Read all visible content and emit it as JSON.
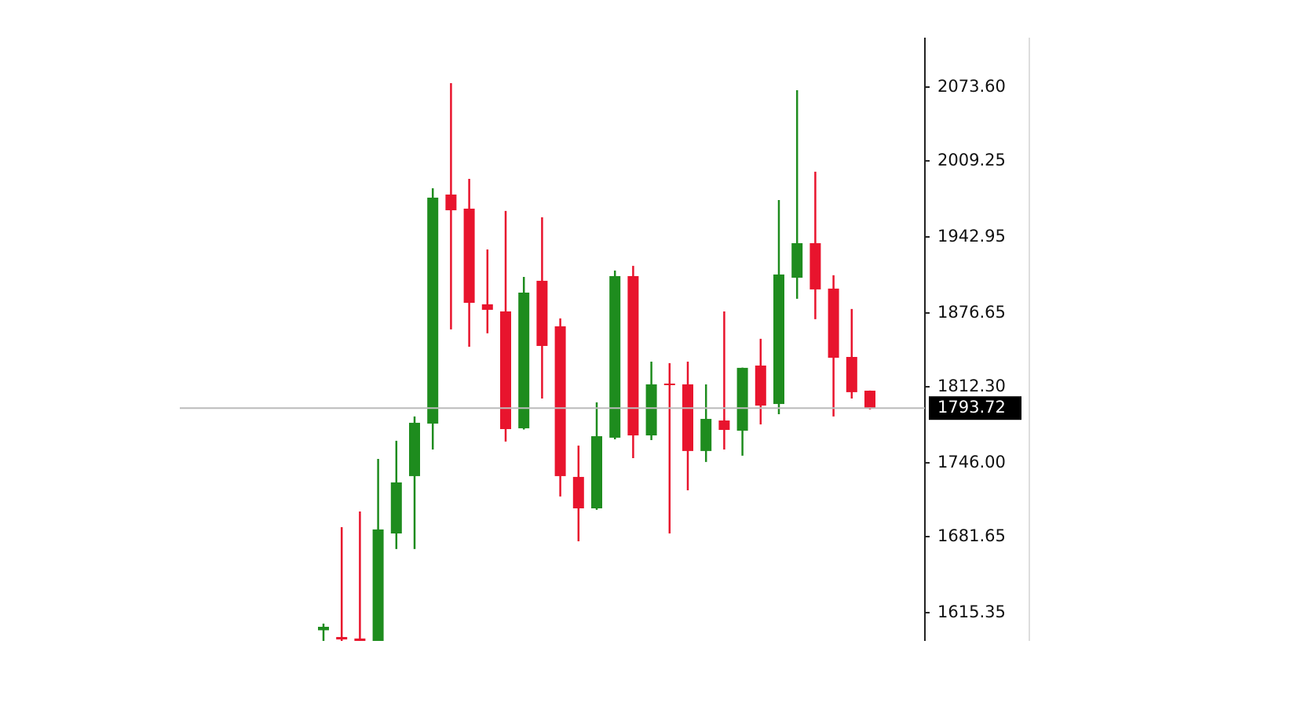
{
  "chart_data": {
    "type": "candlestick",
    "open": [
      1600,
      1594.1,
      1592.8,
      1588,
      1684.4,
      1734.4,
      1780.2,
      1979.9,
      1967.6,
      1884.2,
      1878.0,
      1776.1,
      1904.7,
      1865.0,
      1733.7,
      1706.3,
      1767.9,
      1908.8,
      1769.9,
      1815.1,
      1814.4,
      1756.3,
      1782.9,
      1774.0,
      1830.8,
      1797.3,
      1907.4,
      1937.5,
      1897.9,
      1838.3,
      1808.9
    ],
    "high": [
      1605.8,
      1689.9,
      1703.6,
      1749.4,
      1765.2,
      1786.4,
      1985.4,
      2077.0,
      1993.6,
      1932.0,
      1965.6,
      1908.1,
      1960.1,
      1871.9,
      1761.0,
      1798.7,
      1913.6,
      1917.7,
      1834.2,
      1832.9,
      1834.2,
      1814.4,
      1878.0,
      1829.0,
      1854.1,
      1975.1,
      2070.9,
      1999.8,
      1909.5,
      1880.1,
      1809.0
    ],
    "low": [
      1585,
      1588,
      1588,
      1585,
      1670.8,
      1670.8,
      1757.6,
      1862.3,
      1847.2,
      1858.9,
      1764.5,
      1775.0,
      1802.1,
      1716.6,
      1677.6,
      1705.0,
      1766.5,
      1750.1,
      1765.8,
      1684.4,
      1722.0,
      1746.7,
      1757.6,
      1752.2,
      1779.5,
      1788.4,
      1889.0,
      1871.2,
      1786.4,
      1802.1,
      1792.5
    ],
    "close": [
      1603,
      1592,
      1590.5,
      1687.9,
      1728.9,
      1780.9,
      1977.2,
      1966.2,
      1885.5,
      1879.4,
      1775.4,
      1894.4,
      1847.9,
      1734.4,
      1706.3,
      1769.2,
      1908.8,
      1769.9,
      1814.4,
      1813.7,
      1756.3,
      1784.3,
      1774.7,
      1828.8,
      1795.9,
      1910.2,
      1937.5,
      1897.2,
      1837.6,
      1807.6,
      1793.72
    ],
    "up_color": "#1e8c1e",
    "down_color": "#e8142d",
    "last_price": 1793.72,
    "ylim": [
      1590.7,
      2116.7
    ],
    "yticks": [
      1615.35,
      1681.65,
      {
        "value": 1746.0,
        "label": "1746.00"
      },
      {
        "value": 1812.3,
        "label": "1812.30"
      },
      1876.65,
      1942.95,
      2009.25,
      {
        "value": 2073.6,
        "label": "2073.60"
      }
    ]
  }
}
